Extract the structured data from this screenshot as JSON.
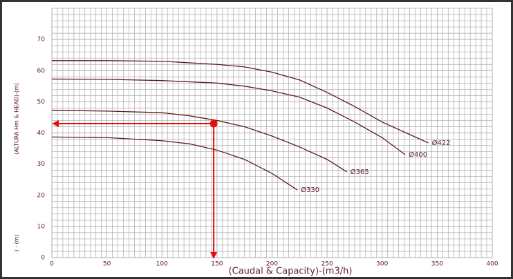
{
  "chart_data": {
    "type": "line",
    "x_label": "(Caudal & Capacity)-(m3/h)",
    "y_label": "(ALTURA Hm & HEAD)-(m)",
    "y_label_2": ") - (m)",
    "xlim": [
      0,
      400
    ],
    "ylim": [
      0,
      80
    ],
    "xticks": [
      0,
      50,
      100,
      150,
      200,
      250,
      300,
      350,
      400
    ],
    "yticks": [
      0,
      10,
      20,
      30,
      40,
      50,
      60,
      70
    ],
    "minor_grid": {
      "x": 5,
      "y": 2
    },
    "color": "#5a1a22",
    "series": [
      {
        "name": "Ø422",
        "x": [
          0,
          50,
          100,
          150,
          175,
          200,
          225,
          250,
          275,
          300,
          325,
          342
        ],
        "values": [
          63.2,
          63.2,
          63,
          62,
          61.2,
          59.5,
          57,
          53,
          48.5,
          43.5,
          39.5,
          36.8
        ]
      },
      {
        "name": "Ø400",
        "x": [
          0,
          50,
          100,
          150,
          175,
          200,
          225,
          250,
          275,
          300,
          321
        ],
        "values": [
          57.3,
          57.2,
          56.8,
          56,
          55,
          53.5,
          51.5,
          48,
          43.5,
          38.5,
          33
        ]
      },
      {
        "name": "Ø365",
        "x": [
          0,
          50,
          100,
          125,
          150,
          175,
          200,
          225,
          250,
          268
        ],
        "values": [
          47.3,
          47,
          46.5,
          45.5,
          44,
          42,
          39,
          35.5,
          31.5,
          27.5
        ]
      },
      {
        "name": "Ø330",
        "x": [
          0,
          50,
          100,
          125,
          150,
          175,
          200,
          223
        ],
        "values": [
          38.7,
          38.5,
          37.5,
          36.5,
          34.5,
          31.5,
          27,
          21.7
        ]
      }
    ],
    "operating_point": {
      "x": 147,
      "y": 43,
      "color": "#e01010"
    }
  }
}
